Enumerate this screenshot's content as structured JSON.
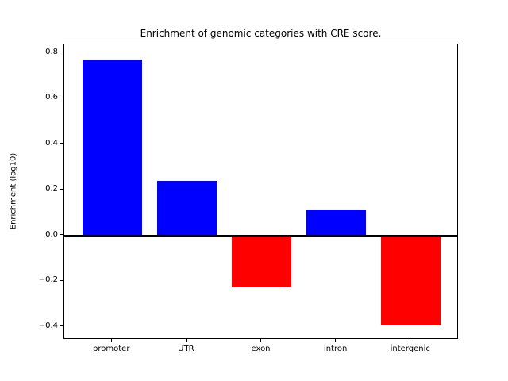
{
  "chart_data": {
    "type": "bar",
    "title": "Enrichment of genomic categories with CRE score.",
    "xlabel": "",
    "ylabel": "Enrichment (log10)",
    "categories": [
      "promoter",
      "UTR",
      "exon",
      "intron",
      "intergenic"
    ],
    "values": [
      0.77,
      0.24,
      -0.225,
      0.115,
      -0.395
    ],
    "bar_colors": [
      "#0000ff",
      "#0000ff",
      "#ff0000",
      "#0000ff",
      "#ff0000"
    ],
    "positive_color": "#0000ff",
    "negative_color": "#ff0000",
    "yticks": [
      0.8,
      0.6,
      0.4,
      0.2,
      0.0,
      -0.2,
      -0.4
    ],
    "ytick_labels": [
      "0.8",
      "0.6",
      "0.4",
      "0.2",
      "0.0",
      "−0.2",
      "−0.4"
    ],
    "ylim": [
      -0.456,
      0.837
    ],
    "xlim": [
      -0.64,
      4.64
    ],
    "bar_width": 0.8,
    "zero_line": true,
    "grid": false,
    "legend": null,
    "plot_bg": "#ffffff",
    "axis_color": "#000000"
  }
}
